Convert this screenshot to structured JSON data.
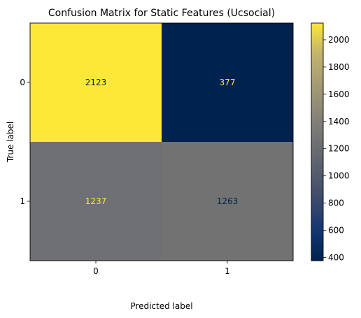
{
  "chart_data": {
    "type": "heatmap",
    "title": "Confusion Matrix for Static Features (Ucsocial)",
    "xlabel": "Predicted label",
    "ylabel": "True label",
    "x_categories": [
      "0",
      "1"
    ],
    "y_categories": [
      "0",
      "1"
    ],
    "values": [
      [
        2123,
        377
      ],
      [
        1237,
        1263
      ]
    ],
    "colormap": "cividis",
    "colorbar": {
      "min": 377,
      "max": 2123,
      "ticks": [
        400,
        600,
        800,
        1000,
        1200,
        1400,
        1600,
        1800,
        2000
      ]
    },
    "text_colors": {
      "on_dark": "#fde737",
      "on_light": "#00224e"
    }
  }
}
